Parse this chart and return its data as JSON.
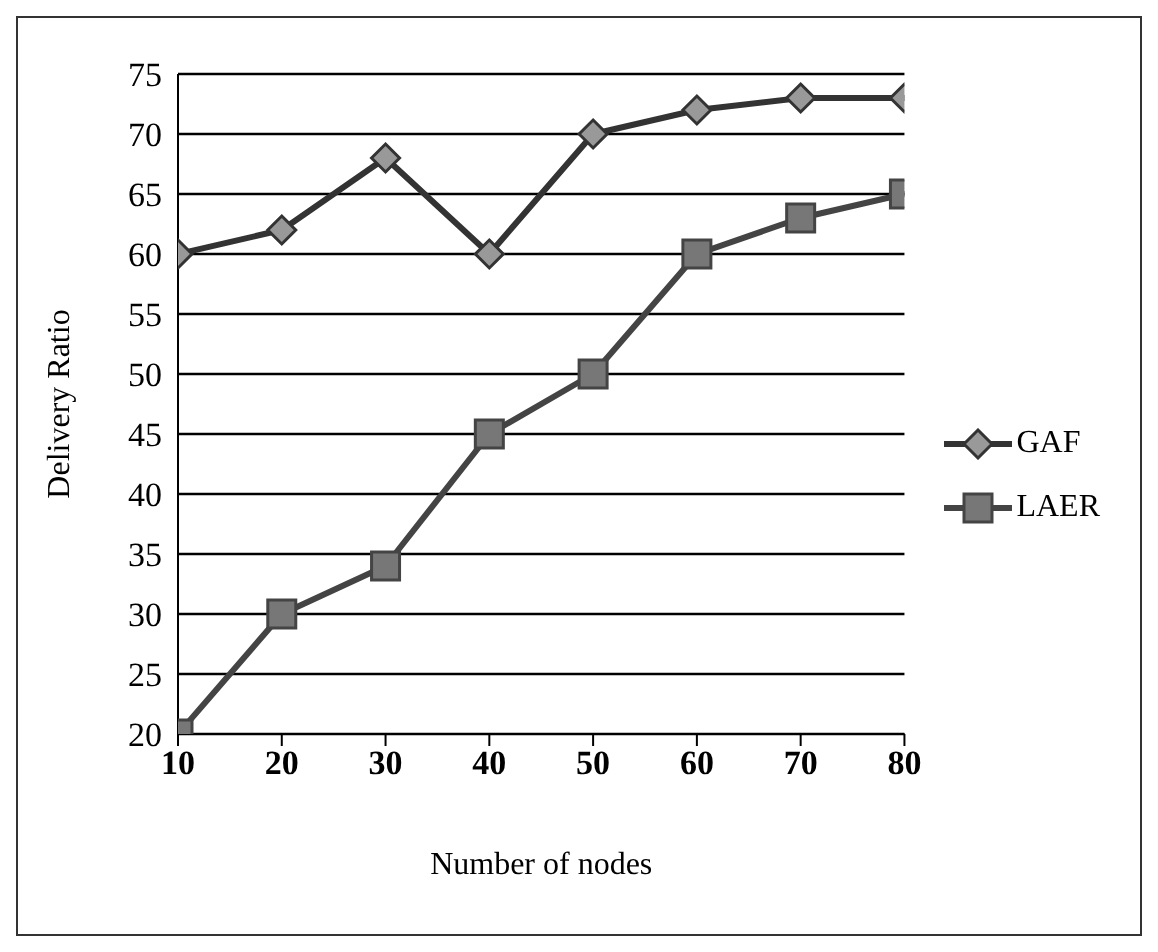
{
  "chart_data": {
    "type": "line",
    "xlabel": "Number of nodes",
    "ylabel": "Delivery Ratio",
    "categories": [
      "10",
      "20",
      "30",
      "40",
      "50",
      "60",
      "70",
      "80"
    ],
    "series": [
      {
        "name": "GAF",
        "color": "#333333",
        "marker": "diamond",
        "values": [
          60,
          62,
          68,
          60,
          70,
          72,
          73,
          73
        ]
      },
      {
        "name": "LAER",
        "color": "#444444",
        "marker": "square",
        "values": [
          20,
          30,
          34,
          45,
          50,
          60,
          63,
          65
        ]
      }
    ],
    "ylim": [
      20,
      75
    ],
    "yticks": [
      20,
      25,
      30,
      35,
      40,
      45,
      50,
      55,
      60,
      65,
      70,
      75
    ],
    "grid": "y",
    "legend": "right"
  }
}
